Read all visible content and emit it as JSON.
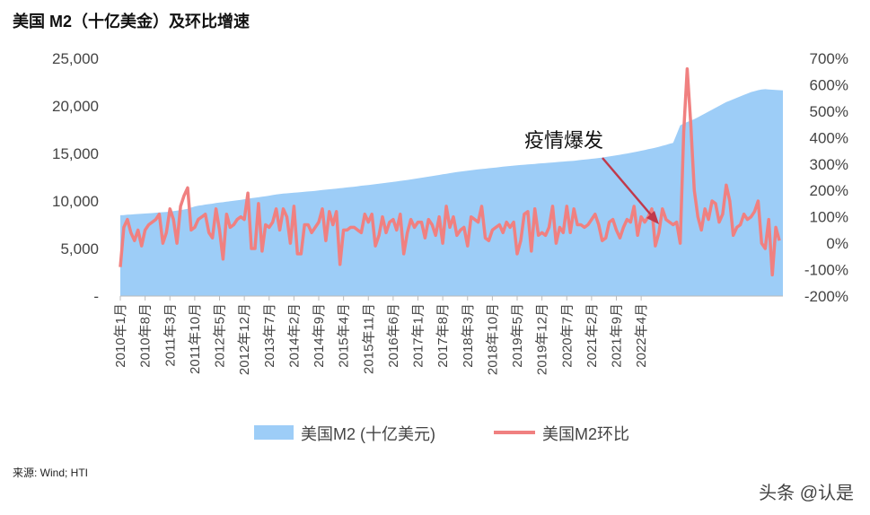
{
  "title": "美国 M2（十亿美金）及环比增速",
  "source": "来源: Wind; HTI",
  "watermark": "头条 @认是",
  "annotation": "疫情爆发",
  "colors": {
    "area": "#9dcdf7",
    "line": "#f08080"
  },
  "chart_data": {
    "type": "area+line",
    "title": "美国 M2（十亿美金）及环比增速",
    "legend_placement": "bottom-center",
    "grid": false,
    "left_axis": {
      "ylim": [
        0,
        25000
      ],
      "ticks": [
        "-",
        "5,000",
        "10,000",
        "15,000",
        "20,000",
        "25,000"
      ]
    },
    "right_axis": {
      "ylim": [
        -200,
        700
      ],
      "ticks": [
        "-200%",
        "-100%",
        "0%",
        "100%",
        "200%",
        "300%",
        "400%",
        "500%",
        "600%",
        "700%"
      ]
    },
    "x_tick_labels": [
      "2010年1月",
      "2010年8月",
      "2011年3月",
      "2011年10月",
      "2012年5月",
      "2012年12月",
      "2013年7月",
      "2014年2月",
      "2014年9月",
      "2015年4月",
      "2015年11月",
      "2016年6月",
      "2017年1月",
      "2017年8月",
      "2018年3月",
      "2018年10月",
      "2019年5月",
      "2019年12月",
      "2020年7月",
      "2021年2月",
      "2021年9月",
      "2022年4月"
    ],
    "x_start": "2010-01",
    "series": [
      {
        "name": "美国M2 (十亿美元)",
        "type": "area",
        "axis": "left",
        "values": [
          8500,
          8520,
          8560,
          8580,
          8600,
          8630,
          8650,
          8680,
          8700,
          8730,
          8760,
          8790,
          8820,
          8850,
          8880,
          8930,
          8990,
          9040,
          9100,
          9180,
          9300,
          9420,
          9500,
          9560,
          9620,
          9670,
          9720,
          9780,
          9830,
          9870,
          9920,
          9970,
          10020,
          10070,
          10120,
          10180,
          10230,
          10290,
          10340,
          10390,
          10440,
          10490,
          10560,
          10620,
          10680,
          10730,
          10770,
          10800,
          10840,
          10880,
          10900,
          10930,
          10960,
          11000,
          11030,
          11070,
          11110,
          11150,
          11190,
          11230,
          11260,
          11300,
          11340,
          11380,
          11420,
          11460,
          11500,
          11550,
          11600,
          11640,
          11680,
          11720,
          11760,
          11810,
          11860,
          11910,
          11960,
          12010,
          12060,
          12110,
          12160,
          12210,
          12260,
          12320,
          12380,
          12440,
          12500,
          12560,
          12620,
          12680,
          12740,
          12800,
          12860,
          12920,
          12980,
          13040,
          13090,
          13140,
          13190,
          13240,
          13280,
          13320,
          13360,
          13400,
          13440,
          13480,
          13520,
          13560,
          13600,
          13640,
          13680,
          13720,
          13750,
          13780,
          13810,
          13840,
          13870,
          13900,
          13930,
          13960,
          13990,
          14020,
          14050,
          14080,
          14110,
          14140,
          14170,
          14200,
          14230,
          14270,
          14310,
          14350,
          14390,
          14430,
          14470,
          14520,
          14570,
          14620,
          14680,
          14740,
          14800,
          14860,
          14920,
          14990,
          15060,
          15130,
          15200,
          15280,
          15360,
          15440,
          15520,
          15600,
          15700,
          15800,
          15900,
          16020,
          16100,
          17000,
          17950,
          18150,
          18300,
          18450,
          18600,
          18800,
          19000,
          19200,
          19400,
          19600,
          19800,
          20000,
          20200,
          20400,
          20550,
          20700,
          20850,
          21000,
          21150,
          21300,
          21450,
          21550,
          21650,
          21720,
          21750,
          21730,
          21700,
          21680,
          21650,
          21620
        ]
      },
      {
        "name": "美国M2环比",
        "type": "line",
        "axis": "right",
        "values": [
          -90,
          60,
          90,
          40,
          10,
          50,
          -10,
          50,
          70,
          80,
          90,
          110,
          0,
          40,
          130,
          90,
          0,
          140,
          180,
          210,
          50,
          60,
          90,
          100,
          110,
          40,
          20,
          130,
          50,
          -60,
          110,
          60,
          70,
          90,
          100,
          90,
          190,
          -20,
          -20,
          150,
          -30,
          70,
          60,
          80,
          130,
          50,
          130,
          100,
          0,
          140,
          -40,
          -40,
          70,
          70,
          40,
          60,
          80,
          130,
          10,
          120,
          70,
          120,
          -80,
          50,
          50,
          60,
          60,
          50,
          40,
          110,
          80,
          110,
          -10,
          30,
          100,
          40,
          80,
          90,
          50,
          110,
          -40,
          40,
          90,
          60,
          80,
          80,
          20,
          90,
          70,
          30,
          100,
          0,
          140,
          60,
          100,
          30,
          50,
          60,
          -10,
          100,
          90,
          80,
          140,
          20,
          10,
          50,
          60,
          70,
          40,
          80,
          60,
          80,
          -40,
          10,
          110,
          120,
          -30,
          130,
          30,
          40,
          30,
          60,
          140,
          0,
          60,
          40,
          140,
          40,
          130,
          70,
          70,
          60,
          70,
          90,
          110,
          70,
          10,
          20,
          80,
          90,
          50,
          20,
          60,
          90,
          80,
          140,
          30,
          100,
          80,
          100,
          130,
          -10,
          40,
          130,
          90,
          80,
          70,
          80,
          0,
          420,
          660,
          450,
          200,
          100,
          50,
          130,
          90,
          160,
          150,
          80,
          110,
          220,
          160,
          30,
          60,
          70,
          110,
          90,
          100,
          120,
          160,
          0,
          -20,
          90,
          -120,
          60,
          10
        ]
      }
    ]
  }
}
